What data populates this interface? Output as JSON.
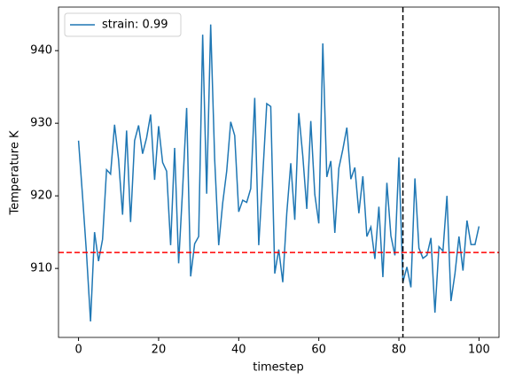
{
  "chart_data": {
    "type": "line",
    "x_label": "timestep",
    "y_label": "Temperature K",
    "x": [
      0,
      1,
      2,
      3,
      4,
      5,
      6,
      7,
      8,
      9,
      10,
      11,
      12,
      13,
      14,
      15,
      16,
      17,
      18,
      19,
      20,
      21,
      22,
      23,
      24,
      25,
      26,
      27,
      28,
      29,
      30,
      31,
      32,
      33,
      34,
      35,
      36,
      37,
      38,
      39,
      40,
      41,
      42,
      43,
      44,
      45,
      46,
      47,
      48,
      49,
      50,
      51,
      52,
      53,
      54,
      55,
      56,
      57,
      58,
      59,
      60,
      61,
      62,
      63,
      64,
      65,
      66,
      67,
      68,
      69,
      70,
      71,
      72,
      73,
      74,
      75,
      76,
      77,
      78,
      79,
      80,
      81,
      82,
      83,
      84,
      85,
      86,
      87,
      88,
      89,
      90,
      91,
      92,
      93,
      94,
      95,
      96,
      97,
      98,
      99,
      100
    ],
    "series": [
      {
        "name": "strain: 0.99",
        "color": "#1f77b4",
        "values": [
          927.6,
          920,
          912,
          902.7,
          915,
          911,
          914,
          923.6,
          923,
          929.8,
          925,
          917.4,
          929,
          916.4,
          927.6,
          929.7,
          925.8,
          928,
          931.2,
          922.2,
          929.6,
          924.6,
          923.4,
          913.2,
          926.6,
          910.7,
          921,
          932.1,
          908.9,
          913.4,
          914.4,
          942.2,
          920.3,
          943.6,
          925,
          913.2,
          919,
          923.4,
          930.2,
          928.3,
          917.8,
          919.4,
          919.1,
          921,
          933.5,
          913.2,
          922.8,
          932.7,
          932.3,
          909.3,
          912.6,
          908.1,
          917.6,
          924.5,
          916.7,
          931.4,
          925.5,
          918.2,
          930.3,
          920.2,
          916.2,
          941,
          922.6,
          924.8,
          914.9,
          923.8,
          926.4,
          929.4,
          922.3,
          923.9,
          917.6,
          922.7,
          914.4,
          915.7,
          911.3,
          918.5,
          908.8,
          921.8,
          914.5,
          911.8,
          925.3,
          908.1,
          910.2,
          907.4,
          922.4,
          912.8,
          911.4,
          911.8,
          914.2,
          903.9,
          913,
          912.4,
          920,
          905.5,
          909.3,
          914.4,
          909.7,
          916.6,
          913.3,
          913.3,
          915.8
        ]
      }
    ],
    "hline": {
      "value": 912.2,
      "color": "#ff0000"
    },
    "vline": {
      "value": 81,
      "color": "#000000"
    },
    "xlim": [
      -5,
      105
    ],
    "ylim": [
      900.5,
      946
    ],
    "xticks": [
      0,
      20,
      40,
      60,
      80,
      100
    ],
    "yticks": [
      910,
      920,
      930,
      940
    ],
    "legend": "upper left"
  }
}
